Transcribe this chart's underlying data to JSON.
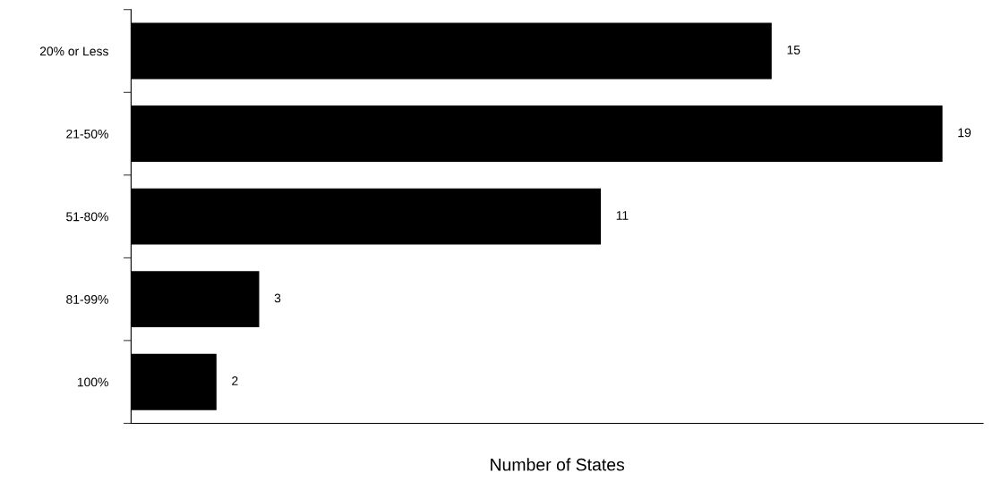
{
  "chart_data": {
    "type": "bar",
    "orientation": "horizontal",
    "xlabel": "Number of States",
    "categories": [
      "20% or Less",
      "21-50%",
      "51-80%",
      "81-99%",
      "100%"
    ],
    "values": [
      15,
      19,
      11,
      3,
      2
    ],
    "color": "#000000",
    "data_labels": true,
    "tick_labels": "y",
    "grid": false,
    "legend": false
  }
}
